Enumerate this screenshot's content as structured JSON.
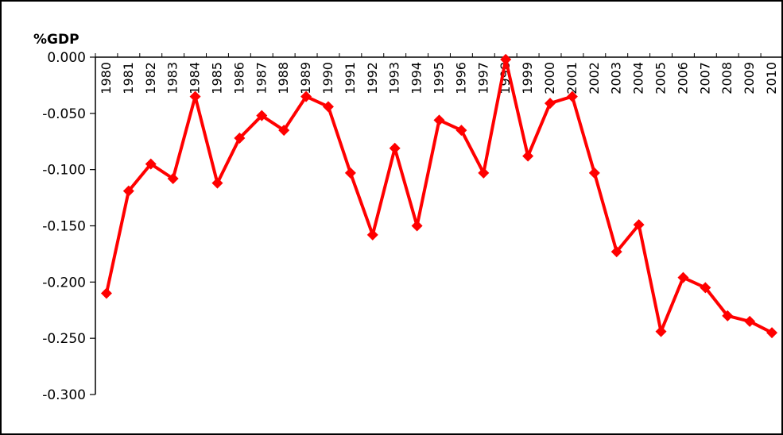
{
  "chart_data": {
    "type": "line",
    "ylabel": "%GDP",
    "categories": [
      "1980",
      "1981",
      "1982",
      "1983",
      "1984",
      "1985",
      "1986",
      "1987",
      "1988",
      "1989",
      "1990",
      "1991",
      "1992",
      "1993",
      "1994",
      "1995",
      "1996",
      "1997",
      "1998",
      "1999",
      "2000",
      "2001",
      "2002",
      "2003",
      "2004",
      "2005",
      "2006",
      "2007",
      "2008",
      "2009",
      "2010"
    ],
    "series": [
      {
        "color": "#ff0000",
        "marker": "diamond",
        "values": [
          -0.21,
          -0.119,
          -0.095,
          -0.108,
          -0.035,
          -0.112,
          -0.072,
          -0.052,
          -0.065,
          -0.035,
          -0.044,
          -0.103,
          -0.158,
          -0.081,
          -0.15,
          -0.056,
          -0.065,
          -0.103,
          -0.002,
          -0.088,
          -0.041,
          -0.035,
          -0.103,
          -0.173,
          -0.149,
          -0.244,
          -0.196,
          -0.205,
          -0.23,
          -0.235,
          -0.245
        ]
      }
    ],
    "yticks": [
      "0.000",
      "-0.050",
      "-0.100",
      "-0.150",
      "-0.200",
      "-0.250",
      "-0.300"
    ],
    "ytick_values": [
      0,
      -0.05,
      -0.1,
      -0.15,
      -0.2,
      -0.25,
      -0.3
    ],
    "ylim": [
      -0.3,
      0
    ],
    "grid": false,
    "legend": "none",
    "category_label_position": "top-rotated"
  }
}
